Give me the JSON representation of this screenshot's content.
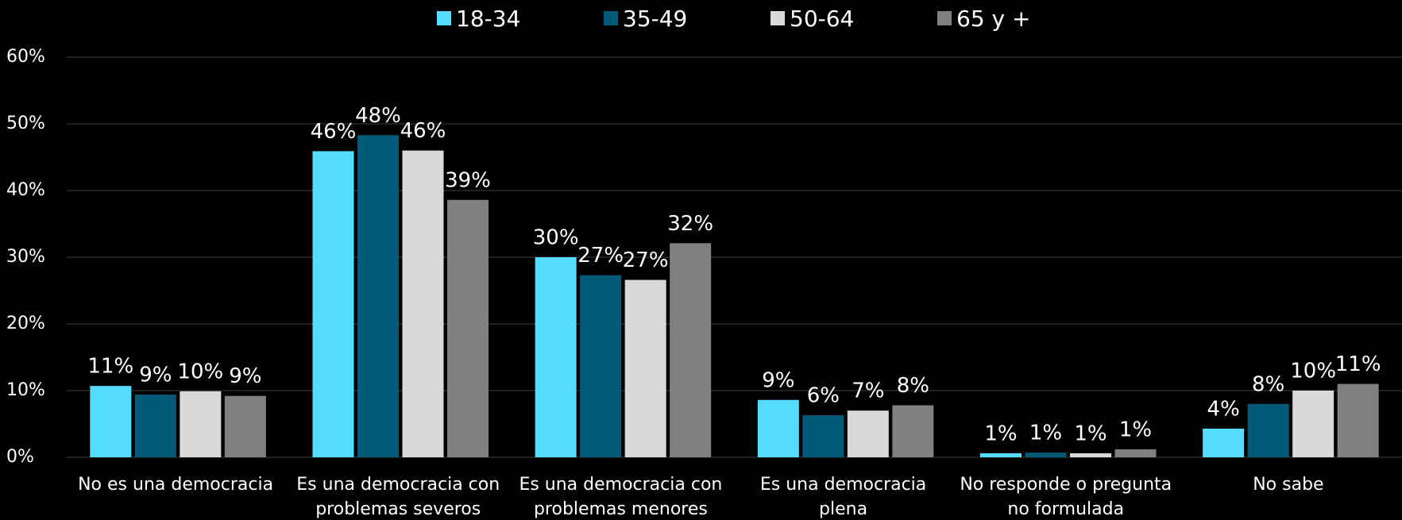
{
  "chart_data": {
    "type": "bar",
    "categories": [
      "No es una democracia",
      "Es una democracia con problemas severos",
      "Es una democracia con problemas menores",
      "Es una democracia plena",
      "No responde o pregunta no formulada",
      "No sabe"
    ],
    "series": [
      {
        "name": "18-34",
        "color": "#55dcff",
        "values": [
          10.7,
          45.9,
          30.0,
          8.6,
          0.6,
          4.3
        ],
        "value_labels": [
          "11%",
          "46%",
          "30%",
          "9%",
          "1%",
          "4%"
        ]
      },
      {
        "name": "35-49",
        "color": "#005a78",
        "values": [
          9.4,
          48.3,
          27.3,
          6.3,
          0.7,
          8.0
        ],
        "value_labels": [
          "9%",
          "48%",
          "27%",
          "6%",
          "1%",
          "8%"
        ]
      },
      {
        "name": "50-64",
        "color": "#d9d9d9",
        "values": [
          9.9,
          46.0,
          26.6,
          7.0,
          0.6,
          10.0
        ],
        "value_labels": [
          "10%",
          "46%",
          "27%",
          "7%",
          "1%",
          "10%"
        ]
      },
      {
        "name": "65 y +",
        "color": "#808080",
        "values": [
          9.2,
          38.6,
          32.1,
          7.8,
          1.2,
          11.0
        ],
        "value_labels": [
          "9%",
          "39%",
          "32%",
          "8%",
          "1%",
          "11%"
        ]
      }
    ],
    "ylim": [
      0,
      60
    ],
    "yticks": [
      {
        "value": 0,
        "label": "0%"
      },
      {
        "value": 10,
        "label": "10%"
      },
      {
        "value": 20,
        "label": "20%"
      },
      {
        "value": 30,
        "label": "30%"
      },
      {
        "value": 40,
        "label": "40%"
      },
      {
        "value": 50,
        "label": "50%"
      },
      {
        "value": 60,
        "label": "60%"
      }
    ],
    "grid": true,
    "legend": "top"
  }
}
